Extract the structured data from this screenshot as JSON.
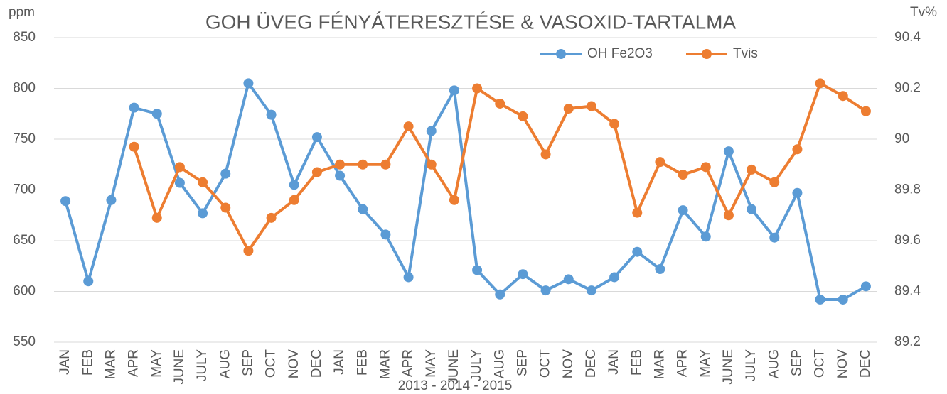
{
  "chart_data": {
    "type": "line",
    "title": "GOH ÜVEG FÉNYÁTERESZTÉSE & VASOXID-TARTALMA",
    "y_label": "ppm",
    "y2_label": "Tv%",
    "x_label": "2013 - 2014 - 2015",
    "categories": [
      "JAN",
      "FEB",
      "MAR",
      "APR",
      "MAY",
      "JUNE",
      "JULY",
      "AUG",
      "SEP",
      "OCT",
      "NOV",
      "DEC",
      "JAN",
      "FEB",
      "MAR",
      "APR",
      "MAY",
      "JUNE",
      "JULY",
      "AUG",
      "SEP",
      "OCT",
      "NOV",
      "DEC",
      "JAN",
      "FEB",
      "MAR",
      "APR",
      "MAY",
      "JUNE",
      "JULY",
      "AUG",
      "SEP",
      "OCT",
      "NOV",
      "DEC"
    ],
    "series": [
      {
        "name": "OH Fe2O3",
        "color": "#5b9bd5",
        "values": [
          689,
          610,
          690,
          781,
          775,
          707,
          677,
          716,
          805,
          774,
          705,
          752,
          714,
          681,
          656,
          614,
          758,
          798,
          621,
          597,
          617,
          601,
          612,
          601,
          614,
          639,
          622,
          680,
          654,
          738,
          681,
          653,
          697,
          592,
          592,
          605
        ]
      },
      {
        "name": "Tvis",
        "color": "#ed7d31",
        "axis": "y2",
        "values": [
          null,
          null,
          null,
          89.97,
          89.69,
          89.89,
          89.83,
          89.73,
          89.56,
          89.69,
          89.76,
          89.87,
          89.9,
          89.9,
          89.9,
          90.05,
          89.9,
          89.76,
          90.2,
          90.14,
          90.09,
          89.94,
          90.12,
          90.13,
          90.06,
          89.71,
          89.91,
          89.86,
          89.89,
          89.7,
          89.88,
          89.83,
          89.96,
          90.22,
          90.17,
          90.11
        ]
      }
    ],
    "ylim": [
      550,
      850
    ],
    "yticks": [
      550,
      600,
      650,
      700,
      750,
      800,
      850
    ],
    "y2lim": [
      89.2,
      90.4
    ],
    "y2ticks": [
      89.2,
      89.4,
      89.6,
      89.8,
      90,
      90.2,
      90.4
    ],
    "grid": true,
    "legend": "top"
  }
}
